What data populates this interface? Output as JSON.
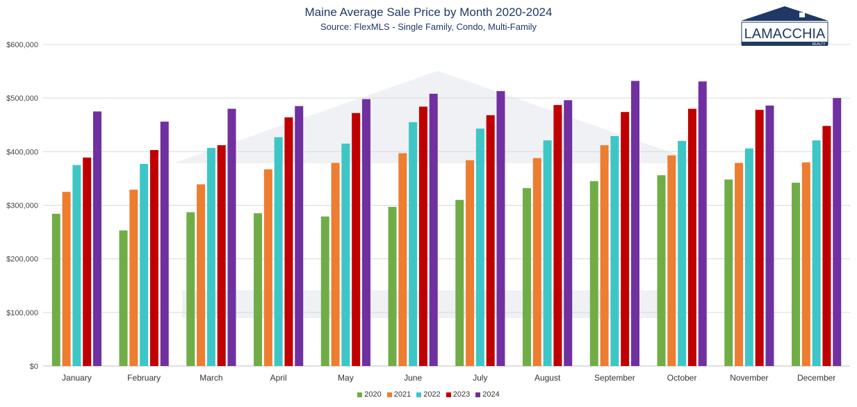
{
  "chart_data": {
    "type": "bar",
    "title": "Maine Average Sale Price by Month 2020-2024",
    "subtitle": "Source: FlexMLS - Single Family, Condo, Multi-Family",
    "categories": [
      "January",
      "February",
      "March",
      "April",
      "May",
      "June",
      "July",
      "August",
      "September",
      "October",
      "November",
      "December"
    ],
    "series": [
      {
        "name": "2020",
        "color": "#70ad47",
        "values": [
          284000,
          253000,
          287000,
          285000,
          279000,
          297000,
          310000,
          332000,
          345000,
          356000,
          348000,
          342000
        ]
      },
      {
        "name": "2021",
        "color": "#ed7d31",
        "values": [
          325000,
          329000,
          339000,
          367000,
          379000,
          397000,
          384000,
          388000,
          412000,
          393000,
          379000,
          380000
        ]
      },
      {
        "name": "2022",
        "color": "#3ec6c6",
        "values": [
          375000,
          377000,
          407000,
          427000,
          415000,
          455000,
          443000,
          421000,
          429000,
          420000,
          406000,
          421000
        ]
      },
      {
        "name": "2023",
        "color": "#c00000",
        "values": [
          389000,
          403000,
          412000,
          464000,
          472000,
          484000,
          468000,
          487000,
          474000,
          480000,
          478000,
          448000
        ]
      },
      {
        "name": "2024",
        "color": "#7030a0",
        "values": [
          475000,
          456000,
          480000,
          485000,
          498000,
          508000,
          513000,
          496000,
          532000,
          531000,
          486000,
          500000
        ]
      }
    ],
    "yticks": [
      "$0",
      "$100,000",
      "$200,000",
      "$300,000",
      "$400,000",
      "$500,000",
      "$600,000"
    ],
    "ylim": [
      0,
      600000
    ],
    "grid": true,
    "legend_position": "bottom"
  },
  "logo": {
    "text": "LAMACCHIA",
    "subtext": "REALTY"
  }
}
